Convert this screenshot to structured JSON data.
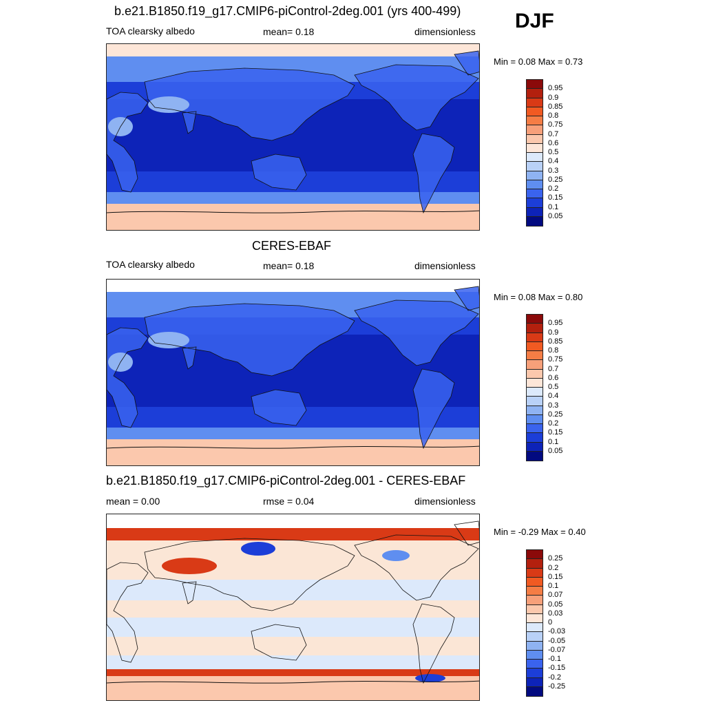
{
  "season": "DJF",
  "panels": [
    {
      "title": "b.e21.B1850.f19_g17.CMIP6-piControl-2deg.001 (yrs 400-499)",
      "left_label": "TOA clearsky albedo",
      "center_label": "mean=   0.18",
      "right_label": "dimensionless",
      "minmax": "Min =   0.08 Max =   0.73",
      "kind": "model"
    },
    {
      "title": "CERES-EBAF",
      "left_label": "TOA clearsky albedo",
      "center_label": "mean=   0.18",
      "right_label": "dimensionless",
      "minmax": "Min =   0.08 Max =   0.80",
      "kind": "obs"
    },
    {
      "title": "b.e21.B1850.f19_g17.CMIP6-piControl-2deg.001 - CERES-EBAF",
      "left_label": "mean =   0.00",
      "center_label": "rmse =   0.04",
      "right_label": "dimensionless",
      "minmax": "Min =  -0.29 Max =   0.40",
      "kind": "diff"
    }
  ],
  "colorbars": {
    "albedo": {
      "labels": [
        "0.95",
        "0.9",
        "0.85",
        "0.8",
        "0.75",
        "0.7",
        "0.6",
        "0.5",
        "0.4",
        "0.3",
        "0.25",
        "0.2",
        "0.15",
        "0.1",
        "0.05"
      ],
      "colors": [
        "#8b0a0a",
        "#b3200e",
        "#d93a16",
        "#f15a22",
        "#f57d45",
        "#f7a07a",
        "#fbc8ad",
        "#fde6d8",
        "#dce9fb",
        "#b9d1f7",
        "#8fb3f2",
        "#5f8ef0",
        "#3a63ee",
        "#1c3ed8",
        "#0d23b8",
        "#020a80"
      ]
    },
    "diff": {
      "labels": [
        "0.25",
        "0.2",
        "0.15",
        "0.1",
        "0.07",
        "0.05",
        "0.03",
        "0",
        "-0.03",
        "-0.05",
        "-0.07",
        "-0.1",
        "-0.15",
        "-0.2",
        "-0.25"
      ],
      "colors": [
        "#8b0a0a",
        "#b3200e",
        "#d93a16",
        "#f15a22",
        "#f57d45",
        "#f7a07a",
        "#fbc8ad",
        "#fde6d8",
        "#dce9fb",
        "#b9d1f7",
        "#8fb3f2",
        "#5f8ef0",
        "#3a63ee",
        "#1c3ed8",
        "#0d23b8",
        "#020a80"
      ]
    }
  }
}
